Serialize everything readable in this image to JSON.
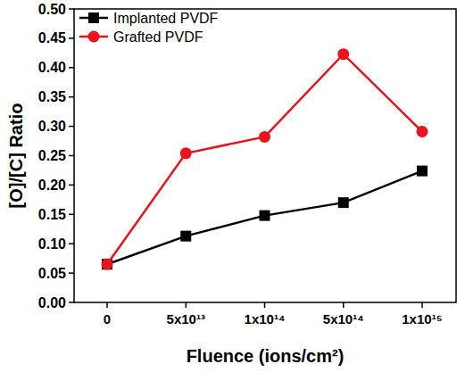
{
  "chart_data": {
    "type": "line",
    "x_label": "Fluence (ions/cm²)",
    "y_label": "[O]/[C] Ratio",
    "categories": [
      "0",
      "5x10¹³",
      "1x10¹⁴",
      "5x10¹⁴",
      "1x10¹⁵"
    ],
    "series": [
      {
        "name": "Implanted PVDF",
        "color": "#000000",
        "marker": "square",
        "line_style": "solid",
        "values": [
          0.065,
          0.113,
          0.148,
          0.17,
          0.224
        ]
      },
      {
        "name": "Grafted PVDF",
        "color": "#e8141c",
        "marker": "circle",
        "line_style": "solid",
        "values": [
          0.065,
          0.254,
          0.282,
          0.423,
          0.291
        ]
      }
    ],
    "ylim": [
      0,
      0.5
    ],
    "yticks": [
      {
        "value": 0,
        "label": "0.00"
      },
      {
        "value": 0.05,
        "label": "0.05"
      },
      {
        "value": 0.1,
        "label": "0.10"
      },
      {
        "value": 0.15,
        "label": "0.15"
      },
      {
        "value": 0.2,
        "label": "0.20"
      },
      {
        "value": 0.25,
        "label": "0.25"
      },
      {
        "value": 0.3,
        "label": "0.30"
      },
      {
        "value": 0.35,
        "label": "0.35"
      },
      {
        "value": 0.4,
        "label": "0.40"
      },
      {
        "value": 0.45,
        "label": "0.45"
      },
      {
        "value": 0.5,
        "label": "0.50"
      }
    ],
    "grid": false,
    "legend": "upper-left"
  }
}
